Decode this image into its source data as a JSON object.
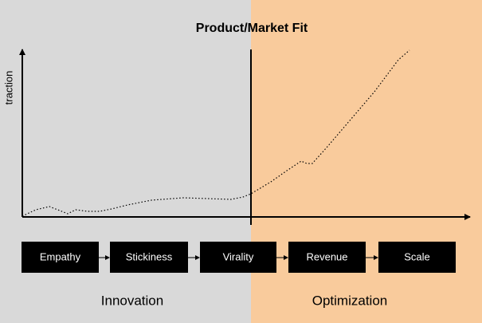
{
  "title": "Product/Market Fit",
  "y_axis_label": "traction",
  "stages": [
    "Empathy",
    "Stickiness",
    "Virality",
    "Revenue",
    "Scale"
  ],
  "phases": [
    "Innovation",
    "Optimization"
  ]
}
